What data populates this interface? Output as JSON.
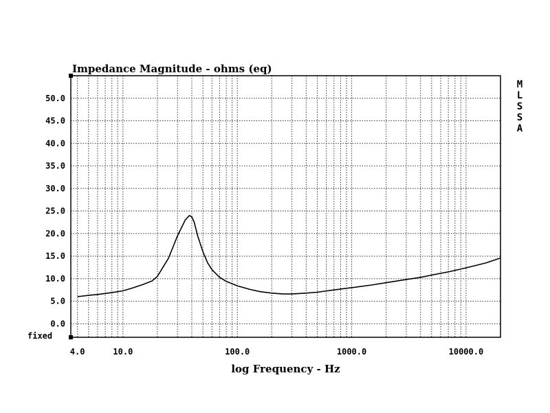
{
  "chart_data": {
    "type": "line",
    "title": "Impedance Magnitude - ohms (eq)",
    "xlabel": "log Frequency - Hz",
    "ylabel": "",
    "xscale": "log",
    "xlim": [
      3.5,
      20000
    ],
    "ylim": [
      -3,
      55
    ],
    "grid": true,
    "x_tick_labels": [
      "4.0",
      "10.0",
      "100.0",
      "1000.0",
      "10000.0"
    ],
    "x_tick_values": [
      4,
      10,
      100,
      1000,
      10000
    ],
    "y_tick_labels": [
      "50.0",
      "45.0",
      "40.0",
      "35.0",
      "30.0",
      "25.0",
      "20.0",
      "15.0",
      "10.0",
      "5.0",
      "0.0"
    ],
    "y_tick_values": [
      50,
      45,
      40,
      35,
      30,
      25,
      20,
      15,
      10,
      5,
      0
    ],
    "side_label": "MLSSA",
    "corner_label": "fixed",
    "series": [
      {
        "x": [
          4,
          5,
          6,
          8,
          10,
          12,
          15,
          18,
          20,
          25,
          30,
          35,
          38,
          40,
          42,
          45,
          50,
          55,
          60,
          70,
          80,
          100,
          130,
          160,
          200,
          250,
          300,
          400,
          500,
          700,
          1000,
          1500,
          2000,
          3000,
          4000,
          5000,
          7000,
          10000,
          15000,
          20000
        ],
        "y": [
          6.0,
          6.3,
          6.5,
          6.9,
          7.3,
          7.9,
          8.7,
          9.5,
          10.5,
          14.5,
          19.5,
          23.0,
          24.0,
          23.7,
          22.5,
          19.5,
          16.0,
          13.5,
          12.0,
          10.3,
          9.4,
          8.4,
          7.6,
          7.1,
          6.8,
          6.6,
          6.6,
          6.8,
          7.0,
          7.5,
          8.0,
          8.6,
          9.1,
          9.8,
          10.3,
          10.8,
          11.5,
          12.4,
          13.5,
          14.6
        ]
      }
    ]
  }
}
